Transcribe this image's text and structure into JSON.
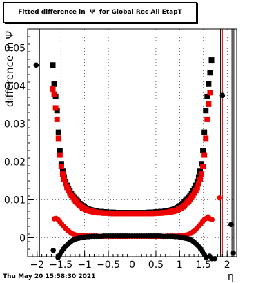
{
  "chart_data": {
    "type": "scatter",
    "title": "Fitted difference in  Ψ  for Global Rec All EtapT",
    "xlabel": "η",
    "ylabel": "difference in Ψ",
    "xlim": [
      -2.2,
      2.2
    ],
    "ylim": [
      -0.005,
      0.055
    ],
    "xticks": [
      -2,
      -1.5,
      -1,
      -0.5,
      0,
      0.5,
      1,
      1.5,
      2
    ],
    "xtick_labels": [
      "−2",
      "−1.5",
      "−1",
      "−0.5",
      "0",
      "0.5",
      "1",
      "1.5",
      "2"
    ],
    "yticks": [
      0,
      0.01,
      0.02,
      0.03,
      0.04,
      0.05
    ],
    "ytick_labels": [
      "0",
      "0.01",
      "0.02",
      "0.03",
      "0.04",
      "0.05"
    ],
    "grid": true,
    "vertical_lines": [
      {
        "x": 1.86,
        "color": "#000000"
      },
      {
        "x": 1.9,
        "color": "#cc0000"
      },
      {
        "x": 2.1,
        "color": "#000000"
      },
      {
        "x": 2.14,
        "color": "#000000"
      },
      {
        "x": -1.95,
        "color": "#000000"
      }
    ],
    "series": [
      {
        "color": "#000000",
        "marker": "square",
        "x": [
          -1.67,
          -1.64,
          -1.61,
          -1.58,
          -1.55,
          -1.52,
          -1.49,
          -1.46,
          -1.43,
          -1.4,
          -1.37,
          -1.34,
          -1.31,
          -1.28,
          -1.25,
          -1.22,
          -1.19,
          -1.16,
          -1.13,
          -1.1,
          -1.07,
          -1.04,
          -1.01,
          -0.98,
          -0.95,
          -0.92,
          -0.89,
          -0.86,
          -0.83,
          -0.8,
          -0.75,
          -0.7,
          -0.65,
          -0.6,
          -0.55,
          -0.5,
          -0.45,
          -0.4,
          -0.35,
          -0.3,
          -0.25,
          -0.2,
          -0.15,
          -0.1,
          -0.05,
          0,
          0.05,
          0.1,
          0.15,
          0.2,
          0.25,
          0.3,
          0.35,
          0.4,
          0.45,
          0.5,
          0.55,
          0.6,
          0.65,
          0.7,
          0.75,
          0.8,
          0.83,
          0.86,
          0.89,
          0.92,
          0.95,
          0.98,
          1.01,
          1.04,
          1.07,
          1.1,
          1.13,
          1.16,
          1.19,
          1.22,
          1.25,
          1.28,
          1.31,
          1.34,
          1.37,
          1.4,
          1.43,
          1.46,
          1.49,
          1.52,
          1.55,
          1.58,
          1.61,
          1.64,
          1.67
        ],
        "y": [
          0.0455,
          0.0405,
          0.0372,
          0.0335,
          0.0278,
          0.023,
          0.0195,
          0.0175,
          0.016,
          0.0148,
          0.0138,
          0.013,
          0.0123,
          0.0117,
          0.0112,
          0.0107,
          0.0102,
          0.0098,
          0.0094,
          0.009,
          0.0087,
          0.0084,
          0.0081,
          0.0079,
          0.0077,
          0.0075,
          0.0074,
          0.0073,
          0.0072,
          0.0071,
          0.007,
          0.0069,
          0.0069,
          0.0068,
          0.0068,
          0.0067,
          0.0067,
          0.0067,
          0.0066,
          0.0066,
          0.0066,
          0.0066,
          0.0066,
          0.0066,
          0.0066,
          0.0066,
          0.0066,
          0.0066,
          0.0066,
          0.0066,
          0.0066,
          0.0066,
          0.0067,
          0.0067,
          0.0067,
          0.0068,
          0.0068,
          0.0069,
          0.0069,
          0.007,
          0.0071,
          0.0072,
          0.0073,
          0.0074,
          0.0075,
          0.0077,
          0.0079,
          0.0081,
          0.0084,
          0.0087,
          0.009,
          0.0094,
          0.0098,
          0.0102,
          0.0107,
          0.0112,
          0.0117,
          0.0123,
          0.013,
          0.0138,
          0.0148,
          0.016,
          0.0175,
          0.0195,
          0.023,
          0.0278,
          0.0335,
          0.0372,
          0.0405,
          0.0435,
          0.0468
        ]
      },
      {
        "color": "#ee0000",
        "marker": "square",
        "x": [
          -1.67,
          -1.64,
          -1.61,
          -1.58,
          -1.55,
          -1.52,
          -1.49,
          -1.46,
          -1.43,
          -1.4,
          -1.37,
          -1.34,
          -1.31,
          -1.28,
          -1.25,
          -1.22,
          -1.19,
          -1.16,
          -1.13,
          -1.1,
          -1.07,
          -1.04,
          -1.01,
          -0.98,
          -0.95,
          -0.92,
          -0.89,
          -0.86,
          -0.83,
          -0.8,
          -0.75,
          -0.7,
          -0.65,
          -0.6,
          -0.55,
          -0.5,
          -0.45,
          -0.4,
          -0.35,
          -0.3,
          -0.25,
          -0.2,
          -0.15,
          -0.1,
          -0.05,
          0,
          0.05,
          0.1,
          0.15,
          0.2,
          0.25,
          0.3,
          0.35,
          0.4,
          0.45,
          0.5,
          0.55,
          0.6,
          0.65,
          0.7,
          0.75,
          0.8,
          0.83,
          0.86,
          0.89,
          0.92,
          0.95,
          0.98,
          1.01,
          1.04,
          1.07,
          1.1,
          1.13,
          1.16,
          1.19,
          1.22,
          1.25,
          1.28,
          1.31,
          1.34,
          1.37,
          1.4,
          1.43,
          1.46,
          1.49,
          1.52,
          1.55,
          1.58,
          1.61,
          1.64
        ],
        "y": [
          0.0392,
          0.0378,
          0.0342,
          0.0312,
          0.0262,
          0.0218,
          0.0188,
          0.0168,
          0.0154,
          0.0142,
          0.0133,
          0.0125,
          0.0118,
          0.0112,
          0.0107,
          0.0102,
          0.0097,
          0.0093,
          0.0089,
          0.0085,
          0.0082,
          0.0079,
          0.0077,
          0.0075,
          0.0073,
          0.0072,
          0.0071,
          0.007,
          0.0069,
          0.0068,
          0.0067,
          0.0066,
          0.0066,
          0.0065,
          0.0065,
          0.0065,
          0.0064,
          0.0064,
          0.0064,
          0.0064,
          0.0064,
          0.0064,
          0.0064,
          0.0064,
          0.0064,
          0.0064,
          0.0064,
          0.0064,
          0.0064,
          0.0064,
          0.0064,
          0.0064,
          0.0064,
          0.0064,
          0.0064,
          0.0065,
          0.0065,
          0.0065,
          0.0066,
          0.0066,
          0.0067,
          0.0068,
          0.0069,
          0.007,
          0.0071,
          0.0072,
          0.0073,
          0.0075,
          0.0077,
          0.0079,
          0.0082,
          0.0085,
          0.0089,
          0.0093,
          0.0097,
          0.0102,
          0.0107,
          0.0112,
          0.0118,
          0.0125,
          0.0133,
          0.0142,
          0.0154,
          0.0168,
          0.0188,
          0.0218,
          0.0262,
          0.0312,
          0.0352,
          0.0382
        ]
      },
      {
        "color": "#ee0000",
        "marker": "circle",
        "x": [
          -1.64,
          -1.6,
          -1.56,
          -1.52,
          -1.48,
          -1.44,
          -1.4,
          -1.36,
          -1.32,
          -1.28,
          -1.24,
          -1.2,
          -1.16,
          -1.12,
          -1.08,
          -1.04,
          -1,
          -0.95,
          -0.9,
          -0.85,
          -0.8,
          -0.75,
          -0.7,
          -0.65,
          -0.6,
          -0.55,
          -0.5,
          -0.45,
          -0.4,
          -0.35,
          -0.3,
          -0.25,
          -0.2,
          -0.15,
          -0.1,
          -0.05,
          0,
          0.05,
          0.1,
          0.15,
          0.2,
          0.25,
          0.3,
          0.35,
          0.4,
          0.45,
          0.5,
          0.55,
          0.6,
          0.65,
          0.7,
          0.75,
          0.8,
          0.85,
          0.9,
          0.95,
          1,
          1.04,
          1.08,
          1.12,
          1.16,
          1.2,
          1.24,
          1.28,
          1.32,
          1.36,
          1.4,
          1.44,
          1.48,
          1.52,
          1.56,
          1.6,
          1.64,
          1.68,
          1.84
        ],
        "y": [
          0.005,
          0.0051,
          0.0048,
          0.0042,
          0.0036,
          0.003,
          0.0025,
          0.002,
          0.0016,
          0.0012,
          0.001,
          0.0008,
          0.0007,
          0.0006,
          0.0006,
          0.0006,
          0.0006,
          0.0005,
          0.0005,
          0.0005,
          0.0005,
          0.0005,
          0.0004,
          0.0004,
          0.0004,
          0.0004,
          0.0004,
          0.0004,
          0.0004,
          0.0004,
          0.0004,
          0.0004,
          0.0004,
          0.0004,
          0.0004,
          0.0004,
          0.0004,
          0.0004,
          0.0004,
          0.0004,
          0.0004,
          0.0004,
          0.0004,
          0.0004,
          0.0004,
          0.0004,
          0.0004,
          0.0004,
          0.0004,
          0.0004,
          0.0004,
          0.0005,
          0.0005,
          0.0005,
          0.0005,
          0.0005,
          0.0006,
          0.0006,
          0.0006,
          0.0007,
          0.0008,
          0.001,
          0.0012,
          0.0016,
          0.002,
          0.0025,
          0.003,
          0.0036,
          0.0042,
          0.0048,
          0.0051,
          0.0055,
          0.005,
          0.0048,
          0.0105
        ]
      },
      {
        "color": "#000000",
        "marker": "circle",
        "x": [
          -2.02,
          -1.66,
          -1.6,
          -1.56,
          -1.52,
          -1.48,
          -1.44,
          -1.4,
          -1.36,
          -1.32,
          -1.28,
          -1.24,
          -1.2,
          -1.16,
          -1.12,
          -1.08,
          -1.04,
          -1,
          -0.95,
          -0.9,
          -0.85,
          -0.8,
          -0.75,
          -0.7,
          -0.65,
          -0.6,
          -0.55,
          -0.5,
          -0.45,
          -0.4,
          -0.35,
          -0.3,
          -0.25,
          -0.2,
          -0.15,
          -0.1,
          -0.05,
          0,
          0.05,
          0.1,
          0.15,
          0.2,
          0.25,
          0.3,
          0.35,
          0.4,
          0.45,
          0.5,
          0.55,
          0.6,
          0.65,
          0.7,
          0.75,
          0.8,
          0.85,
          0.9,
          0.95,
          1,
          1.04,
          1.08,
          1.12,
          1.16,
          1.2,
          1.24,
          1.28,
          1.32,
          1.36,
          1.4,
          1.44,
          1.48,
          1.52,
          1.56,
          1.6,
          1.63,
          1.66,
          1.68,
          1.74,
          1.9,
          2.08,
          2.13
        ],
        "y": [
          0.0455,
          -0.0033,
          -0.006,
          -0.0052,
          -0.0044,
          -0.0036,
          -0.0029,
          -0.0023,
          -0.0018,
          -0.0013,
          -0.0009,
          -0.0006,
          -0.0004,
          -0.0002,
          -0.0001,
          0,
          0.0001,
          0.0002,
          0.0003,
          0.0003,
          0.0004,
          0.0004,
          0.0004,
          0.0004,
          0.0004,
          0.0005,
          0.0005,
          0.0005,
          0.0005,
          0.0005,
          0.0005,
          0.0005,
          0.0005,
          0.0005,
          0.0005,
          0.0005,
          0.0005,
          0.0005,
          0.0005,
          0.0005,
          0.0005,
          0.0005,
          0.0005,
          0.0005,
          0.0005,
          0.0005,
          0.0005,
          0.0005,
          0.0005,
          0.0005,
          0.0004,
          0.0004,
          0.0004,
          0.0004,
          0.0004,
          0.0003,
          0.0003,
          0.0002,
          0.0001,
          0,
          -0.0001,
          -0.0002,
          -0.0004,
          -0.0006,
          -0.0009,
          -0.0013,
          -0.0018,
          -0.0023,
          -0.0029,
          -0.0036,
          -0.0044,
          -0.0052,
          -0.006,
          -0.0048,
          -0.0062,
          -0.0055,
          -0.0055,
          0.0375,
          0.0035,
          -0.004
        ]
      }
    ]
  }
}
